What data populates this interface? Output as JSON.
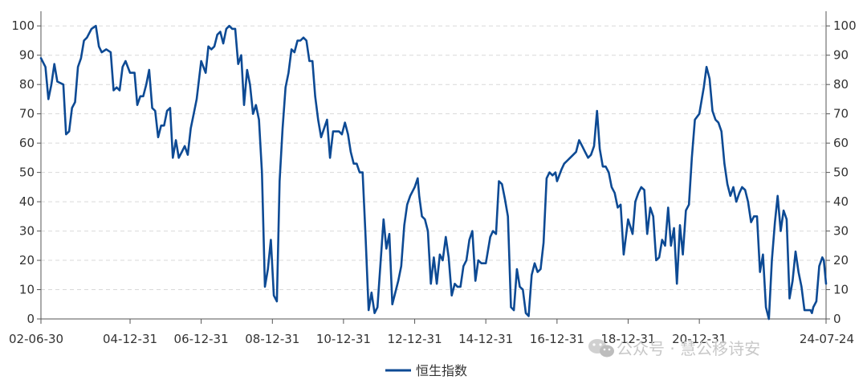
{
  "chart_data": {
    "type": "line",
    "x_range": [
      "2002-06-30",
      "2024-07-24"
    ],
    "ylim": [
      0,
      105
    ],
    "yticks": [
      0,
      10,
      20,
      30,
      40,
      50,
      60,
      70,
      80,
      90,
      100
    ],
    "xticks": [
      {
        "label": "02-06-30",
        "date": "2002-06-30"
      },
      {
        "label": "04-12-31",
        "date": "2004-12-31"
      },
      {
        "label": "06-12-31",
        "date": "2006-12-31"
      },
      {
        "label": "08-12-31",
        "date": "2008-12-31"
      },
      {
        "label": "10-12-31",
        "date": "2010-12-31"
      },
      {
        "label": "12-12-31",
        "date": "2012-12-31"
      },
      {
        "label": "14-12-31",
        "date": "2014-12-31"
      },
      {
        "label": "16-12-31",
        "date": "2016-12-31"
      },
      {
        "label": "18-12-31",
        "date": "2018-12-31"
      },
      {
        "label": "20-12-31",
        "date": "2020-12-31"
      },
      {
        "label": "24-07-24",
        "date": "2024-07-24"
      }
    ],
    "grid": {
      "horizontal": true,
      "style": "dashed"
    },
    "legend": {
      "position": "bottom-center"
    },
    "series": [
      {
        "name": "恒生指数",
        "color": "#0d4a94",
        "points": [
          [
            "2002-06-30",
            89
          ],
          [
            "2002-08-15",
            86
          ],
          [
            "2002-09-15",
            75
          ],
          [
            "2002-10-15",
            80
          ],
          [
            "2002-11-15",
            87
          ],
          [
            "2002-12-15",
            81
          ],
          [
            "2003-02-15",
            80
          ],
          [
            "2003-03-15",
            63
          ],
          [
            "2003-04-15",
            64
          ],
          [
            "2003-05-15",
            72
          ],
          [
            "2003-06-15",
            74
          ],
          [
            "2003-07-15",
            86
          ],
          [
            "2003-08-15",
            89
          ],
          [
            "2003-09-15",
            95
          ],
          [
            "2003-10-15",
            96
          ],
          [
            "2003-12-01",
            99
          ],
          [
            "2004-01-15",
            100
          ],
          [
            "2004-02-15",
            93
          ],
          [
            "2004-03-15",
            91
          ],
          [
            "2004-05-01",
            92
          ],
          [
            "2004-06-15",
            91
          ],
          [
            "2004-07-15",
            78
          ],
          [
            "2004-08-15",
            79
          ],
          [
            "2004-09-15",
            78
          ],
          [
            "2004-10-15",
            86
          ],
          [
            "2004-11-15",
            88
          ],
          [
            "2004-12-31",
            84
          ],
          [
            "2005-02-15",
            84
          ],
          [
            "2005-03-15",
            73
          ],
          [
            "2005-04-15",
            76
          ],
          [
            "2005-05-15",
            76
          ],
          [
            "2005-06-15",
            80
          ],
          [
            "2005-07-15",
            85
          ],
          [
            "2005-08-15",
            72
          ],
          [
            "2005-09-15",
            71
          ],
          [
            "2005-10-15",
            62
          ],
          [
            "2005-11-15",
            66
          ],
          [
            "2005-12-15",
            66
          ],
          [
            "2006-01-15",
            71
          ],
          [
            "2006-02-15",
            72
          ],
          [
            "2006-03-15",
            55
          ],
          [
            "2006-04-15",
            61
          ],
          [
            "2006-05-15",
            55
          ],
          [
            "2006-06-15",
            57
          ],
          [
            "2006-07-15",
            59
          ],
          [
            "2006-08-15",
            56
          ],
          [
            "2006-09-15",
            65
          ],
          [
            "2006-10-15",
            70
          ],
          [
            "2006-11-15",
            75
          ],
          [
            "2006-12-31",
            88
          ],
          [
            "2007-02-15",
            84
          ],
          [
            "2007-03-15",
            93
          ],
          [
            "2007-04-15",
            92
          ],
          [
            "2007-05-15",
            93
          ],
          [
            "2007-06-15",
            97
          ],
          [
            "2007-07-15",
            98
          ],
          [
            "2007-08-15",
            94
          ],
          [
            "2007-09-15",
            99
          ],
          [
            "2007-10-15",
            100
          ],
          [
            "2007-11-15",
            99
          ],
          [
            "2007-12-15",
            99
          ],
          [
            "2008-01-15",
            87
          ],
          [
            "2008-02-15",
            90
          ],
          [
            "2008-03-15",
            73
          ],
          [
            "2008-04-15",
            85
          ],
          [
            "2008-05-15",
            80
          ],
          [
            "2008-06-15",
            70
          ],
          [
            "2008-07-15",
            73
          ],
          [
            "2008-08-15",
            68
          ],
          [
            "2008-09-15",
            50
          ],
          [
            "2008-10-15",
            11
          ],
          [
            "2008-11-15",
            17
          ],
          [
            "2008-12-15",
            27
          ],
          [
            "2009-01-15",
            8
          ],
          [
            "2009-02-15",
            6
          ],
          [
            "2009-03-15",
            47
          ],
          [
            "2009-04-15",
            65
          ],
          [
            "2009-05-15",
            79
          ],
          [
            "2009-06-15",
            84
          ],
          [
            "2009-07-15",
            92
          ],
          [
            "2009-08-15",
            91
          ],
          [
            "2009-09-15",
            95
          ],
          [
            "2009-10-15",
            95
          ],
          [
            "2009-11-15",
            96
          ],
          [
            "2009-12-15",
            95
          ],
          [
            "2010-01-15",
            88
          ],
          [
            "2010-02-15",
            88
          ],
          [
            "2010-03-15",
            76
          ],
          [
            "2010-04-15",
            68
          ],
          [
            "2010-05-15",
            62
          ],
          [
            "2010-06-15",
            65
          ],
          [
            "2010-07-15",
            68
          ],
          [
            "2010-08-15",
            55
          ],
          [
            "2010-09-15",
            64
          ],
          [
            "2010-10-15",
            64
          ],
          [
            "2010-11-15",
            64
          ],
          [
            "2010-12-15",
            63
          ],
          [
            "2011-01-15",
            67
          ],
          [
            "2011-02-15",
            63
          ],
          [
            "2011-03-15",
            57
          ],
          [
            "2011-04-15",
            53
          ],
          [
            "2011-05-15",
            53
          ],
          [
            "2011-06-15",
            50
          ],
          [
            "2011-07-15",
            50
          ],
          [
            "2011-08-15",
            28
          ],
          [
            "2011-09-15",
            3
          ],
          [
            "2011-10-15",
            9
          ],
          [
            "2011-11-15",
            2
          ],
          [
            "2011-12-15",
            4
          ],
          [
            "2012-01-15",
            19
          ],
          [
            "2012-02-15",
            34
          ],
          [
            "2012-03-15",
            24
          ],
          [
            "2012-04-15",
            29
          ],
          [
            "2012-05-15",
            5
          ],
          [
            "2012-06-15",
            9
          ],
          [
            "2012-07-15",
            13
          ],
          [
            "2012-08-15",
            18
          ],
          [
            "2012-09-15",
            32
          ],
          [
            "2012-10-15",
            39
          ],
          [
            "2012-11-15",
            42
          ],
          [
            "2012-12-31",
            45
          ],
          [
            "2013-01-31",
            48
          ],
          [
            "2013-02-15",
            42
          ],
          [
            "2013-03-15",
            35
          ],
          [
            "2013-04-15",
            34
          ],
          [
            "2013-05-15",
            30
          ],
          [
            "2013-06-15",
            12
          ],
          [
            "2013-07-15",
            21
          ],
          [
            "2013-08-15",
            12
          ],
          [
            "2013-09-15",
            22
          ],
          [
            "2013-10-15",
            20
          ],
          [
            "2013-11-15",
            28
          ],
          [
            "2013-12-15",
            21
          ],
          [
            "2014-01-15",
            8
          ],
          [
            "2014-02-15",
            12
          ],
          [
            "2014-03-15",
            11
          ],
          [
            "2014-04-15",
            11
          ],
          [
            "2014-05-15",
            18
          ],
          [
            "2014-06-15",
            20
          ],
          [
            "2014-07-15",
            27
          ],
          [
            "2014-08-15",
            30
          ],
          [
            "2014-09-15",
            13
          ],
          [
            "2014-10-15",
            20
          ],
          [
            "2014-11-15",
            19
          ],
          [
            "2014-12-31",
            19
          ],
          [
            "2015-02-15",
            28
          ],
          [
            "2015-03-15",
            30
          ],
          [
            "2015-04-15",
            29
          ],
          [
            "2015-05-15",
            47
          ],
          [
            "2015-06-15",
            46
          ],
          [
            "2015-07-15",
            41
          ],
          [
            "2015-08-15",
            35
          ],
          [
            "2015-09-15",
            4
          ],
          [
            "2015-10-15",
            3
          ],
          [
            "2015-11-15",
            17
          ],
          [
            "2015-12-15",
            11
          ],
          [
            "2016-01-15",
            10
          ],
          [
            "2016-02-15",
            2
          ],
          [
            "2016-03-15",
            1
          ],
          [
            "2016-04-15",
            15
          ],
          [
            "2016-05-15",
            19
          ],
          [
            "2016-06-15",
            16
          ],
          [
            "2016-07-15",
            17
          ],
          [
            "2016-08-15",
            26
          ],
          [
            "2016-09-15",
            48
          ],
          [
            "2016-10-15",
            50
          ],
          [
            "2016-11-15",
            49
          ],
          [
            "2016-12-15",
            50
          ],
          [
            "2016-12-31",
            47
          ],
          [
            "2017-02-15",
            51
          ],
          [
            "2017-03-15",
            53
          ],
          [
            "2017-04-15",
            54
          ],
          [
            "2017-05-15",
            55
          ],
          [
            "2017-06-15",
            56
          ],
          [
            "2017-07-15",
            57
          ],
          [
            "2017-08-15",
            61
          ],
          [
            "2017-09-15",
            59
          ],
          [
            "2017-10-15",
            57
          ],
          [
            "2017-11-15",
            55
          ],
          [
            "2017-12-15",
            56
          ],
          [
            "2018-01-15",
            59
          ],
          [
            "2018-02-15",
            71
          ],
          [
            "2018-03-15",
            58
          ],
          [
            "2018-04-15",
            52
          ],
          [
            "2018-05-15",
            52
          ],
          [
            "2018-06-15",
            50
          ],
          [
            "2018-07-15",
            45
          ],
          [
            "2018-08-15",
            43
          ],
          [
            "2018-09-15",
            38
          ],
          [
            "2018-10-15",
            39
          ],
          [
            "2018-11-15",
            22
          ],
          [
            "2018-12-31",
            34
          ],
          [
            "2019-02-15",
            29
          ],
          [
            "2019-03-15",
            40
          ],
          [
            "2019-04-15",
            43
          ],
          [
            "2019-05-15",
            45
          ],
          [
            "2019-06-15",
            44
          ],
          [
            "2019-07-15",
            29
          ],
          [
            "2019-08-15",
            38
          ],
          [
            "2019-09-15",
            35
          ],
          [
            "2019-10-15",
            20
          ],
          [
            "2019-11-15",
            21
          ],
          [
            "2019-12-15",
            27
          ],
          [
            "2020-01-15",
            25
          ],
          [
            "2020-02-15",
            38
          ],
          [
            "2020-03-15",
            25
          ],
          [
            "2020-04-15",
            31
          ],
          [
            "2020-05-15",
            12
          ],
          [
            "2020-06-15",
            32
          ],
          [
            "2020-07-15",
            22
          ],
          [
            "2020-08-15",
            37
          ],
          [
            "2020-09-15",
            39
          ],
          [
            "2020-10-15",
            55
          ],
          [
            "2020-11-15",
            68
          ],
          [
            "2020-12-31",
            70
          ],
          [
            "2021-02-15",
            79
          ],
          [
            "2021-03-15",
            86
          ],
          [
            "2021-04-15",
            82
          ],
          [
            "2021-05-15",
            71
          ],
          [
            "2021-06-15",
            68
          ],
          [
            "2021-07-15",
            67
          ],
          [
            "2021-08-15",
            64
          ],
          [
            "2021-09-15",
            53
          ],
          [
            "2021-10-15",
            46
          ],
          [
            "2021-11-15",
            42
          ],
          [
            "2021-12-15",
            45
          ],
          [
            "2022-01-15",
            40
          ],
          [
            "2022-02-15",
            43
          ],
          [
            "2022-03-15",
            45
          ],
          [
            "2022-04-15",
            44
          ],
          [
            "2022-05-15",
            40
          ],
          [
            "2022-06-15",
            33
          ],
          [
            "2022-07-15",
            35
          ],
          [
            "2022-08-15",
            35
          ],
          [
            "2022-09-15",
            16
          ],
          [
            "2022-10-15",
            22
          ],
          [
            "2022-11-15",
            4
          ],
          [
            "2022-12-15",
            0
          ],
          [
            "2023-01-15",
            20
          ],
          [
            "2023-02-15",
            33
          ],
          [
            "2023-03-15",
            42
          ],
          [
            "2023-04-15",
            30
          ],
          [
            "2023-05-15",
            37
          ],
          [
            "2023-06-15",
            34
          ],
          [
            "2023-07-15",
            7
          ],
          [
            "2023-08-15",
            13
          ],
          [
            "2023-09-15",
            23
          ],
          [
            "2023-10-15",
            16
          ],
          [
            "2023-11-15",
            11
          ],
          [
            "2023-12-15",
            3
          ],
          [
            "2024-01-15",
            3
          ],
          [
            "2024-02-15",
            3
          ],
          [
            "2024-03-01",
            2
          ],
          [
            "2024-03-15",
            4
          ],
          [
            "2024-04-15",
            6
          ],
          [
            "2024-05-15",
            18
          ],
          [
            "2024-06-15",
            21
          ],
          [
            "2024-07-01",
            20
          ],
          [
            "2024-07-24",
            12
          ]
        ]
      }
    ]
  },
  "watermark": "公众号 · 慧公移诗安"
}
